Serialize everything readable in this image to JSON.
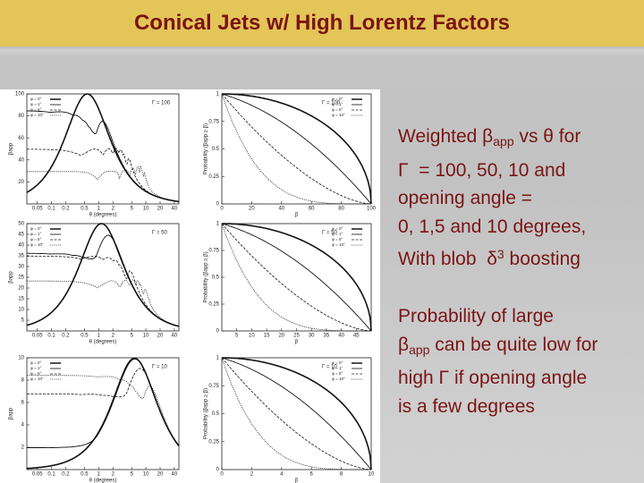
{
  "title": "Conical Jets w/ High Lorentz Factors",
  "figure": {
    "legend": [
      "φ = 0°",
      "φ = 1°",
      "φ = 5°",
      "φ = 10°"
    ],
    "rows": [
      {
        "left": {
          "label": "Γ = 100",
          "x_label": "θ (degrees)",
          "y_label": "βapp",
          "xscale": "log",
          "xlim": [
            0.03,
            50
          ],
          "xticks": [
            0.05,
            0.1,
            0.2,
            0.5,
            1,
            2,
            5,
            10,
            20,
            40
          ],
          "ylim": [
            0,
            100
          ],
          "yticks": [
            20,
            40,
            60,
            80,
            100
          ]
        },
        "right": {
          "label": "Γ = 100",
          "x_label": "β",
          "y_label": "Probability (βapp ≥ β)",
          "xscale": "linear",
          "xlim": [
            0,
            100
          ],
          "xticks": [
            0,
            20,
            40,
            60,
            80,
            100
          ],
          "ylim": [
            0,
            1
          ],
          "yticks": [
            0,
            0.25,
            0.5,
            0.75,
            1
          ]
        }
      },
      {
        "left": {
          "label": "Γ = 50",
          "x_label": "θ (degrees)",
          "y_label": "βapp",
          "xscale": "log",
          "xlim": [
            0.03,
            50
          ],
          "xticks": [
            0.05,
            0.1,
            0.2,
            0.5,
            1,
            2,
            5,
            10,
            20,
            40
          ],
          "ylim": [
            0,
            50
          ],
          "yticks": [
            5,
            10,
            15,
            20,
            25,
            30,
            35,
            40,
            45,
            50
          ]
        },
        "right": {
          "label": "Γ = 50",
          "x_label": "β",
          "y_label": "Probability (βapp ≥ β)",
          "xscale": "linear",
          "xlim": [
            0,
            50
          ],
          "xticks": [
            5,
            10,
            15,
            20,
            25,
            30,
            35,
            40,
            45
          ],
          "ylim": [
            0,
            1
          ],
          "yticks": [
            0,
            0.25,
            0.5,
            0.75,
            1
          ]
        }
      },
      {
        "left": {
          "label": "Γ = 10",
          "x_label": "θ (degrees)",
          "y_label": "βapp",
          "xscale": "log",
          "xlim": [
            0.03,
            50
          ],
          "xticks": [
            0.05,
            0.1,
            0.2,
            0.5,
            1,
            2,
            5,
            10,
            20,
            40
          ],
          "ylim": [
            0,
            10
          ],
          "yticks": [
            2,
            4,
            6,
            8,
            10
          ]
        },
        "right": {
          "label": "Γ = 10",
          "x_label": "β",
          "y_label": "Probability (βapp ≥ β)",
          "xscale": "linear",
          "xlim": [
            0,
            10
          ],
          "xticks": [
            0,
            2,
            4,
            6,
            8,
            10
          ],
          "ylim": [
            0,
            1
          ],
          "yticks": [
            0,
            0.25,
            0.5,
            0.75,
            1
          ]
        }
      }
    ]
  },
  "text": {
    "paragraphs": [
      [
        [
          "Weighted β",
          "app",
          " vs θ for"
        ],
        [
          "Γ  = 100, 50, 10 and"
        ],
        [
          "opening angle ="
        ],
        [
          "0, 1,5 and 10 degrees,"
        ],
        [
          "With blob  δ",
          "3",
          " boosting"
        ]
      ],
      [
        [
          "Probability of large"
        ],
        [
          "β",
          "app",
          " can be quite low for"
        ],
        [
          "high Γ if opening angle"
        ],
        [
          "is a few degrees"
        ]
      ]
    ]
  }
}
